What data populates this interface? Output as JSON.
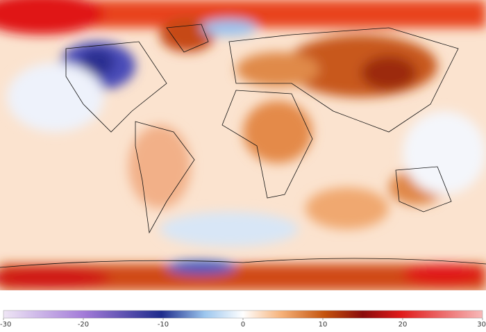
{
  "colorbar": {
    "xlim": [
      -30,
      30
    ],
    "xticks": [
      -30,
      -20,
      -10,
      0,
      10,
      20,
      30
    ]
  }
}
